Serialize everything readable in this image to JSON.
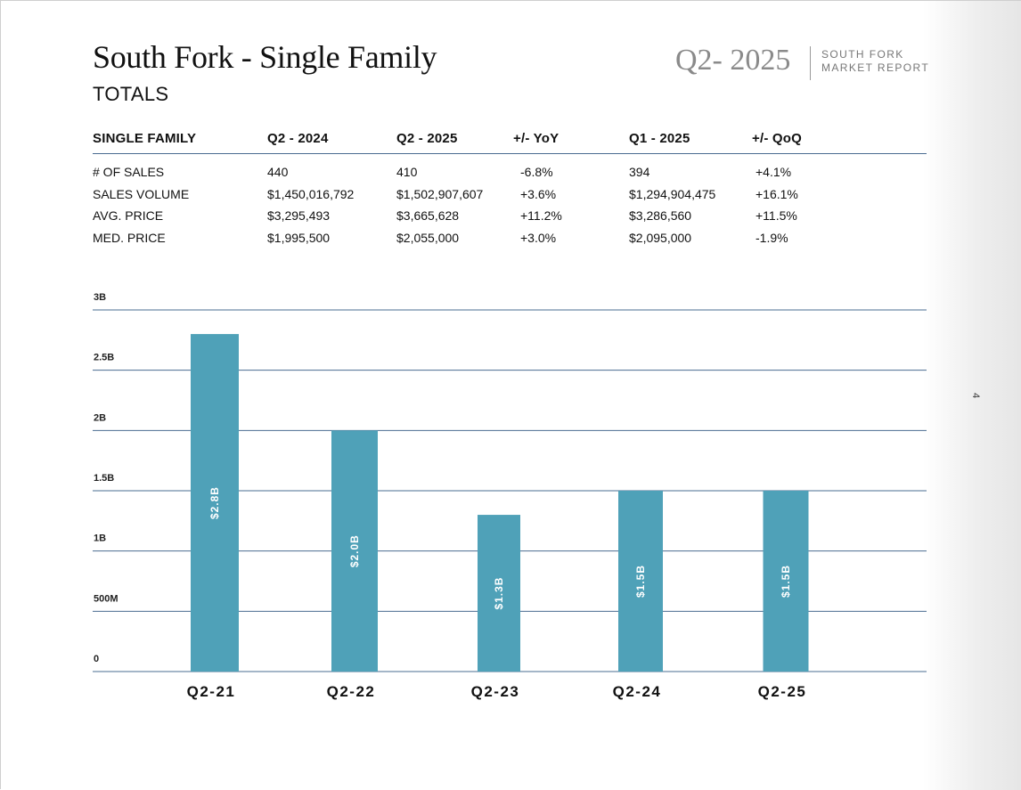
{
  "header": {
    "title": "South Fork - Single Family",
    "subtitle": "TOTALS",
    "period": "Q2- 2025",
    "brand_line1": "SOUTH FORK",
    "brand_line2": "MARKET REPORT",
    "page_number": "4"
  },
  "table": {
    "columns": [
      "SINGLE FAMILY",
      "Q2 - 2024",
      "Q2 - 2025",
      "+/- YoY",
      "Q1 - 2025",
      "+/- QoQ"
    ],
    "rows": [
      [
        "# OF SALES",
        "440",
        "410",
        "-6.8%",
        "394",
        "+4.1%"
      ],
      [
        "SALES VOLUME",
        "$1,450,016,792",
        "$1,502,907,607",
        "+3.6%",
        "$1,294,904,475",
        "+16.1%"
      ],
      [
        "AVG. PRICE",
        "$3,295,493",
        "$3,665,628",
        "+11.2%",
        "$3,286,560",
        "+11.5%"
      ],
      [
        "MED. PRICE",
        "$1,995,500",
        "$2,055,000",
        "+3.0%",
        "$2,095,000",
        "-1.9%"
      ]
    ]
  },
  "chart_data": {
    "type": "bar",
    "title": "",
    "xlabel": "",
    "ylabel": "",
    "categories": [
      "Q2-21",
      "Q2-22",
      "Q2-23",
      "Q2-24",
      "Q2-25"
    ],
    "values": [
      2.8,
      2.0,
      1.3,
      1.5,
      1.5
    ],
    "data_labels": [
      "$2.8B",
      "$2.0B",
      "$1.3B",
      "$1.5B",
      "$1.5B"
    ],
    "y_ticks": [
      0,
      0.5,
      1,
      1.5,
      2,
      2.5,
      3
    ],
    "y_tick_labels": [
      "0",
      "500M",
      "1B",
      "1.5B",
      "2B",
      "2.5B",
      "3B"
    ],
    "ylim": [
      0,
      3
    ],
    "y_unit": "billions USD",
    "grid": true,
    "bar_color": "#4fa1b8",
    "grid_color": "#4a6c91"
  }
}
